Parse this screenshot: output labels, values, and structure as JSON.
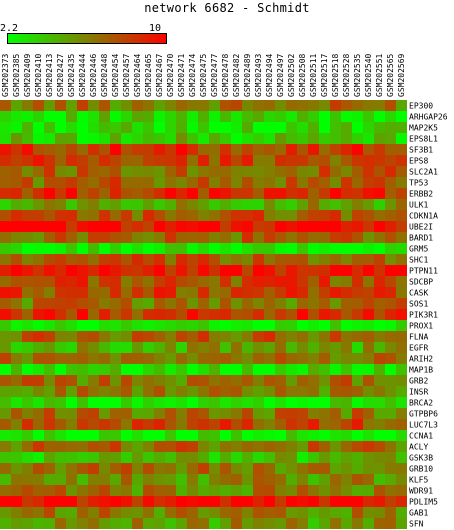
{
  "chart_data": {
    "type": "heatmap",
    "title": "network 6682 - Schmidt",
    "colorbar": {
      "min_label": "2.2",
      "max_label": "10",
      "min": 2.2,
      "max": 10,
      "low_color": "#00ff00",
      "mid_color": "#808000",
      "high_color": "#ff0000"
    },
    "columns": [
      "GSM202373",
      "GSM202385",
      "GSM202409",
      "GSM202410",
      "GSM202413",
      "GSM202427",
      "GSM202435",
      "GSM202444",
      "GSM202446",
      "GSM202448",
      "GSM202454",
      "GSM202457",
      "GSM202464",
      "GSM202465",
      "GSM202467",
      "GSM202470",
      "GSM202471",
      "GSM202474",
      "GSM202475",
      "GSM202477",
      "GSM202478",
      "GSM202482",
      "GSM202489",
      "GSM202493",
      "GSM202494",
      "GSM202497",
      "GSM202502",
      "GSM202508",
      "GSM202511",
      "GSM202517",
      "GSM202518",
      "GSM202528",
      "GSM202535",
      "GSM202540",
      "GSM202551",
      "GSM202565",
      "GSM202569"
    ],
    "rows": [
      "EP300",
      "ARHGAP26",
      "MAP2K5",
      "EPS8L1",
      "SF3B1",
      "EPS8",
      "SLC2A1",
      "TP53",
      "ERBB2",
      "ULK1",
      "CDKN1A",
      "UBE2I",
      "BARD1",
      "GRM5",
      "SHC1",
      "PTPN11",
      "SDCBP",
      "CASK",
      "SOS1",
      "PIK3R1",
      "PROX1",
      "FLNA",
      "EGFR",
      "ARIH2",
      "MAP1B",
      "GRB2",
      "INSR",
      "BRCA2",
      "GTPBP6",
      "LUC7L3",
      "CCNA1",
      "ACLY",
      "GSK3B",
      "GRB10",
      "KLF5",
      "WDR91",
      "PDLIM5",
      "GAB1",
      "SFN"
    ],
    "row_levels": [
      0.55,
      0.15,
      0.12,
      0.22,
      0.78,
      0.72,
      0.62,
      0.62,
      0.82,
      0.38,
      0.65,
      0.95,
      0.62,
      0.05,
      0.62,
      0.92,
      0.7,
      0.72,
      0.55,
      0.78,
      0.05,
      0.62,
      0.35,
      0.55,
      0.12,
      0.55,
      0.52,
      0.08,
      0.55,
      0.72,
      0.05,
      0.58,
      0.28,
      0.55,
      0.45,
      0.52,
      0.95,
      0.52,
      0.42
    ]
  }
}
